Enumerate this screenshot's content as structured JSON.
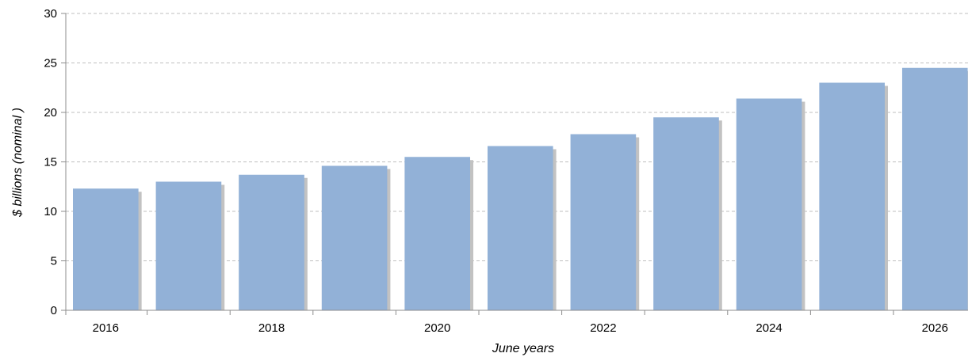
{
  "chart_data": {
    "type": "bar",
    "title": "",
    "xlabel": "June years",
    "ylabel": "$ billions (nominal )",
    "categories": [
      "2016",
      "2017",
      "2018",
      "2019",
      "2020",
      "2021",
      "2022",
      "2023",
      "2024",
      "2025",
      "2026"
    ],
    "x_tick_labels": [
      "2016",
      "",
      "2018",
      "",
      "2020",
      "",
      "2022",
      "",
      "2024",
      "",
      "2026"
    ],
    "values": [
      12.3,
      13.0,
      13.7,
      14.6,
      15.5,
      16.6,
      17.8,
      19.5,
      21.4,
      23.0,
      24.5
    ],
    "ylim": [
      0,
      30
    ],
    "y_ticks": [
      0,
      5,
      10,
      15,
      20,
      25,
      30
    ],
    "grid": true,
    "legend": "none",
    "colors": {
      "bar": "#92b1d7",
      "bar_shadow": "#c2c2c2",
      "grid": "#bfbfbf",
      "axis": "#8c8c8c"
    }
  }
}
